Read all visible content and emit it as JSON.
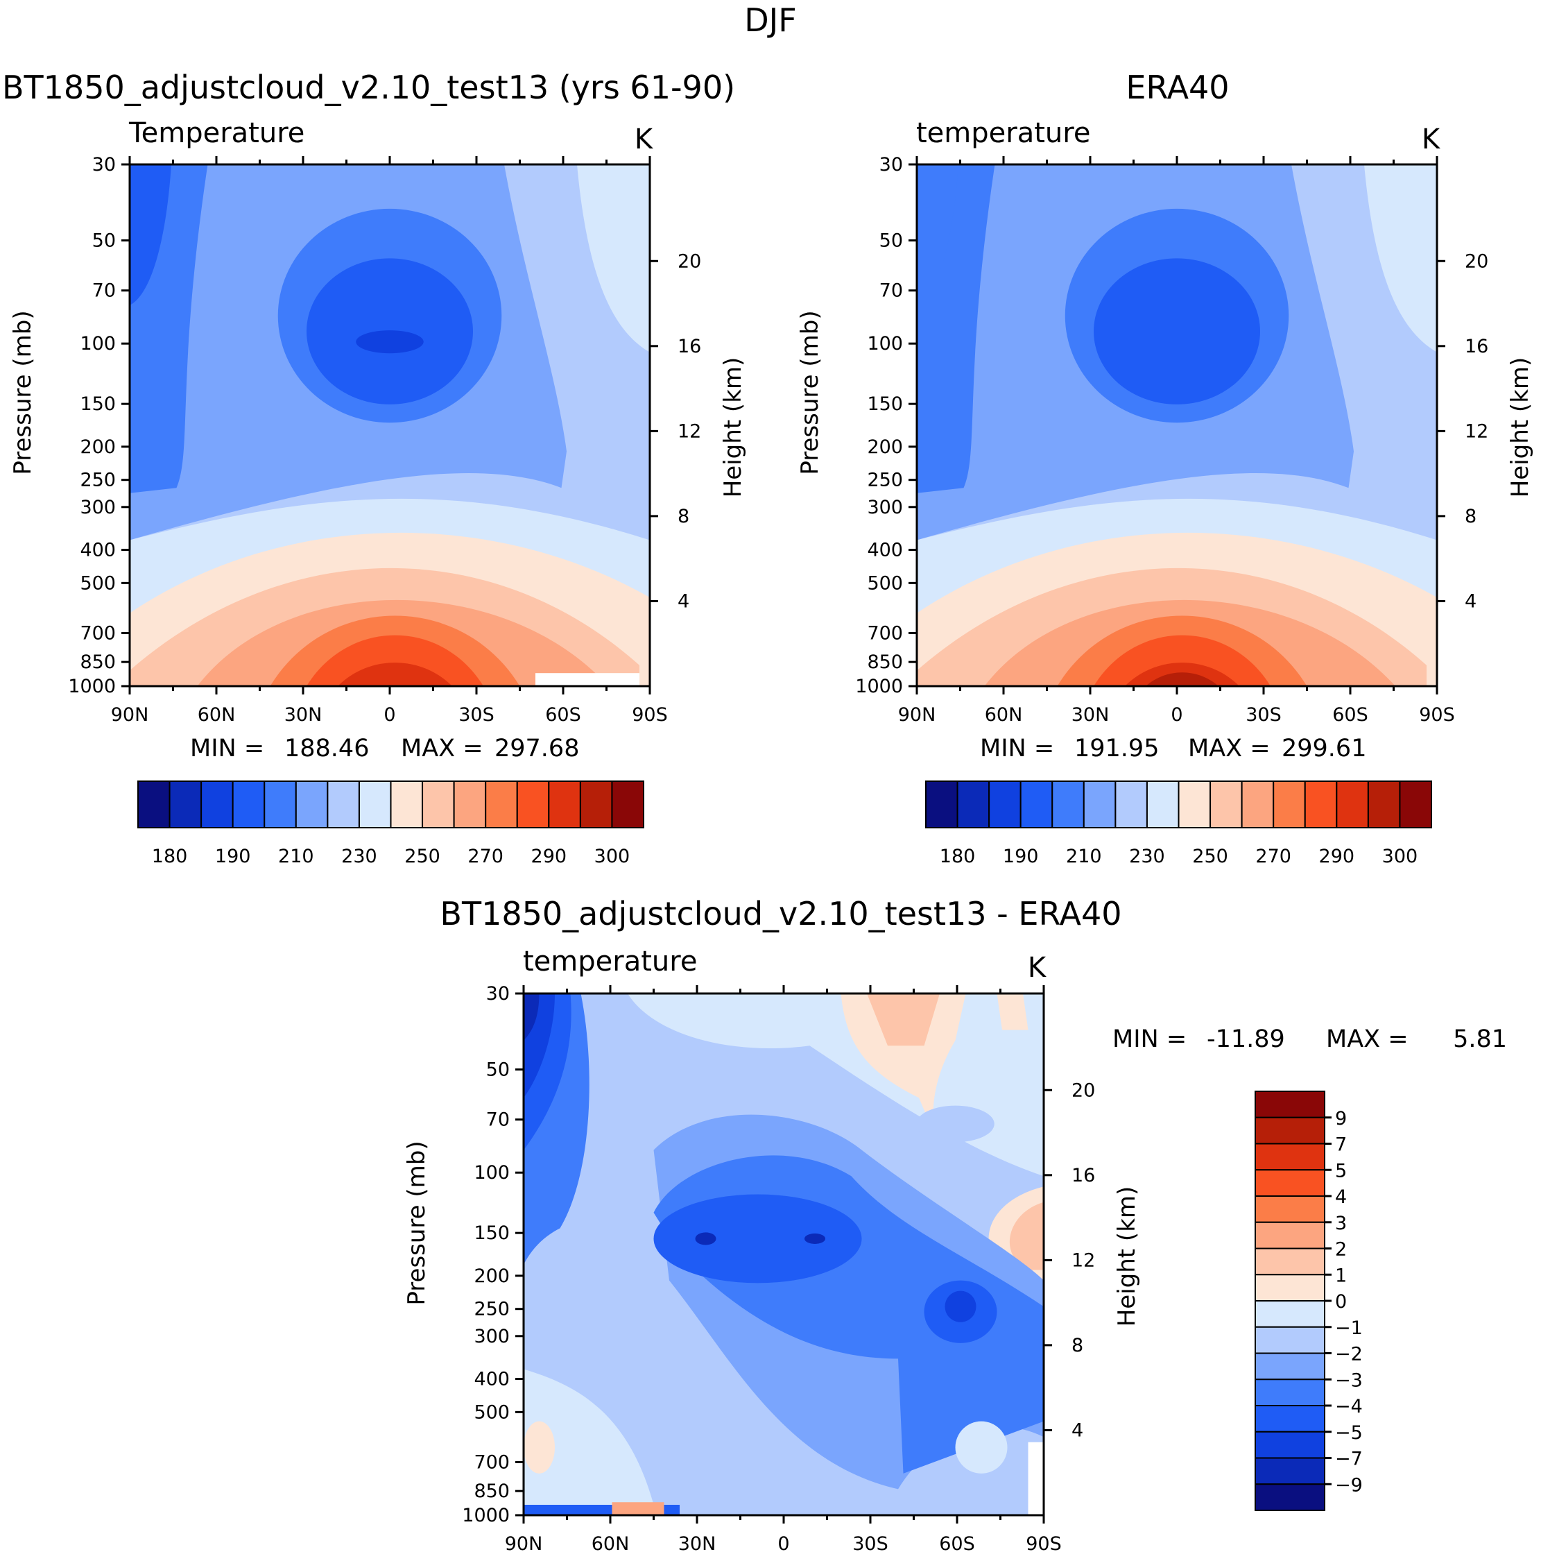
{
  "figure_title": "DJF",
  "chart_data": [
    {
      "id": "model",
      "type": "contour",
      "title": "BT1850_adjustcloud_v2.10_test13 (yrs 61-90)",
      "subtitle_left": "Temperature",
      "units": "K",
      "xlabel": "",
      "ylabel": "Pressure (mb)",
      "y2label": "Height (km)",
      "x_ticks": [
        "90N",
        "60N",
        "30N",
        "0",
        "30S",
        "60S",
        "90S"
      ],
      "x_range": [
        90,
        -90
      ],
      "y_ticks": [
        30,
        50,
        70,
        100,
        150,
        200,
        250,
        300,
        400,
        500,
        700,
        850,
        1000
      ],
      "y_range": [
        30,
        1000
      ],
      "y2_ticks": [
        20,
        16,
        12,
        8,
        4
      ],
      "min_label": "MIN =",
      "min_value": "188.46",
      "max_label": "MAX =",
      "max_value": "297.68",
      "levels": [
        180,
        185,
        190,
        200,
        210,
        220,
        230,
        240,
        250,
        260,
        270,
        280,
        290,
        295,
        300
      ],
      "colorbar_labels": [
        "180",
        "190",
        "210",
        "230",
        "250",
        "270",
        "290",
        "300"
      ]
    },
    {
      "id": "obs",
      "type": "contour",
      "title": "ERA40",
      "subtitle_left": "temperature",
      "units": "K",
      "xlabel": "",
      "ylabel": "Pressure (mb)",
      "y2label": "Height (km)",
      "x_ticks": [
        "90N",
        "60N",
        "30N",
        "0",
        "30S",
        "60S",
        "90S"
      ],
      "x_range": [
        90,
        -90
      ],
      "y_ticks": [
        30,
        50,
        70,
        100,
        150,
        200,
        250,
        300,
        400,
        500,
        700,
        850,
        1000
      ],
      "y_range": [
        30,
        1000
      ],
      "y2_ticks": [
        20,
        16,
        12,
        8,
        4
      ],
      "min_label": "MIN =",
      "min_value": "191.95",
      "max_label": "MAX =",
      "max_value": "299.61",
      "levels": [
        180,
        185,
        190,
        200,
        210,
        220,
        230,
        240,
        250,
        260,
        270,
        280,
        290,
        295,
        300
      ],
      "colorbar_labels": [
        "180",
        "190",
        "210",
        "230",
        "250",
        "270",
        "290",
        "300"
      ]
    },
    {
      "id": "diff",
      "type": "contour",
      "title": "BT1850_adjustcloud_v2.10_test13 - ERA40",
      "subtitle_left": "temperature",
      "units": "K",
      "xlabel": "",
      "ylabel": "Pressure (mb)",
      "y2label": "Height (km)",
      "x_ticks": [
        "90N",
        "60N",
        "30N",
        "0",
        "30S",
        "60S",
        "90S"
      ],
      "x_range": [
        90,
        -90
      ],
      "y_ticks": [
        30,
        50,
        70,
        100,
        150,
        200,
        250,
        300,
        400,
        500,
        700,
        850,
        1000
      ],
      "y_range": [
        30,
        1000
      ],
      "y2_ticks": [
        20,
        16,
        12,
        8,
        4
      ],
      "min_label": "MIN =",
      "min_value": "-11.89",
      "max_label": "MAX =",
      "max_value": "5.81",
      "levels": [
        -9,
        -7,
        -5,
        -4,
        -3,
        -2,
        -1,
        0,
        1,
        2,
        3,
        4,
        5,
        7,
        9
      ],
      "colorbar_labels": [
        "9",
        "7",
        "5",
        "4",
        "3",
        "2",
        "1",
        "0",
        "−1",
        "−2",
        "−3",
        "−4",
        "−5",
        "−7",
        "−9"
      ]
    }
  ],
  "colors": {
    "palette": [
      "#0a0f80",
      "#0b2ab8",
      "#1041e0",
      "#1f5cf5",
      "#3f7cfb",
      "#7aa5fd",
      "#b2cbfd",
      "#d6e8fd",
      "#fde5d5",
      "#fdc5aa",
      "#fca580",
      "#fb7d48",
      "#f95222",
      "#df3310",
      "#b61f08",
      "#8a0707"
    ],
    "missing": "#ffffff"
  }
}
